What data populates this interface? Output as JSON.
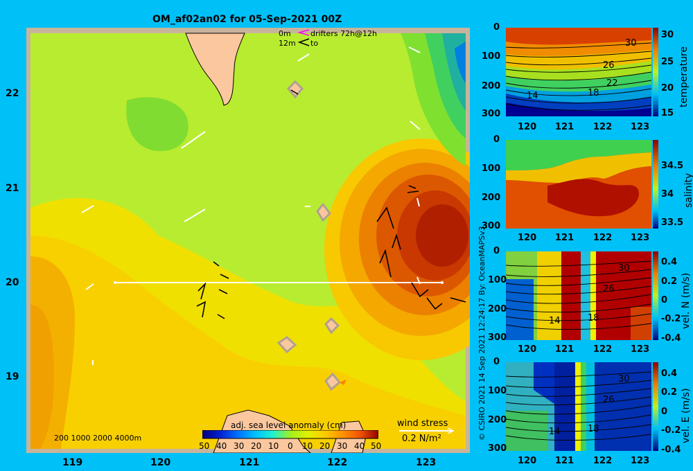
{
  "title": "OM_af02an02 for 05-Sep-2021 00Z",
  "map": {
    "lat_labels": [
      "22",
      "21",
      "20",
      "19"
    ],
    "lon_labels": [
      "119",
      "120",
      "121",
      "122",
      "123"
    ],
    "drifter_legend": {
      "line1_depth": "0m",
      "line1_text": "drifters 72h@12h",
      "line2_depth": "12m",
      "line2_text": "to"
    },
    "depth_legend": "200  1000  2000  4000m",
    "colorbar": {
      "title": "adj. sea level anomaly (cm)",
      "ticks": [
        "50",
        "40",
        "30",
        "20",
        "10",
        "0",
        "10",
        "20",
        "30",
        "40",
        "50"
      ],
      "colors": [
        "#00007f",
        "#0020d0",
        "#0070ff",
        "#00c0ff",
        "#20f0d0",
        "#40e040",
        "#a0f020",
        "#e0f000",
        "#ffc800",
        "#ff9000",
        "#f05000",
        "#c02000",
        "#900000"
      ]
    },
    "wind_stress": {
      "label": "wind stress",
      "scale": "0.2 N/m²"
    }
  },
  "panels": [
    {
      "label": "temperature",
      "cb_ticks": [
        "30",
        "25",
        "20",
        "15"
      ],
      "x_ticks": [
        "120",
        "121",
        "122",
        "123"
      ],
      "y_ticks": [
        "0",
        "100",
        "200",
        "300"
      ],
      "contour_labels": [
        "30",
        "26",
        "22",
        "14",
        "18"
      ]
    },
    {
      "label": "salinity",
      "cb_ticks": [
        "34.5",
        "34",
        "33.5"
      ],
      "x_ticks": [
        "120",
        "121",
        "122",
        "123"
      ],
      "y_ticks": [
        "0",
        "100",
        "200",
        "300"
      ],
      "contour_labels": []
    },
    {
      "label": "vel. N (m/s)",
      "cb_ticks": [
        "0.4",
        "0.2",
        "0",
        "-0.2",
        "-0.4"
      ],
      "x_ticks": [
        "120",
        "121",
        "122",
        "123"
      ],
      "y_ticks": [
        "0",
        "100",
        "200",
        "300"
      ],
      "contour_labels": [
        "30",
        "26",
        "14",
        "18"
      ]
    },
    {
      "label": "vel. E (m/s)",
      "cb_ticks": [
        "0.4",
        "0.2",
        "0",
        "-0.2",
        "-0.4"
      ],
      "x_ticks": [
        "120",
        "121",
        "122",
        "123"
      ],
      "y_ticks": [
        "0",
        "100",
        "200",
        "300"
      ],
      "contour_labels": [
        "30",
        "26",
        "14",
        "18"
      ]
    }
  ],
  "credit": "© CSIRO 2021    14 Sep 2021 12:24:17 By: OceanMAPSv3"
}
